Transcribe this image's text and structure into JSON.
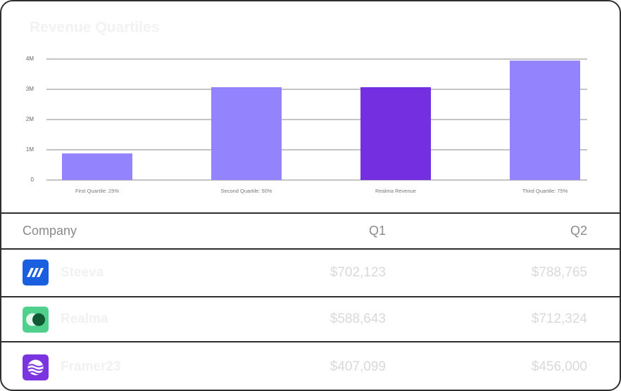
{
  "chart_data": {
    "type": "bar",
    "title": "Revenue Quartiles",
    "categories": [
      "First Quartile: 25%",
      "Second Quartile: 50%",
      "Realma Revenue",
      "Third Quartile: 75%"
    ],
    "values": [
      880000,
      3070000,
      3070000,
      3950000
    ],
    "colors": [
      "#9384fd",
      "#9384fd",
      "#7430e0",
      "#9384fd"
    ],
    "ylim": [
      0,
      4000000
    ],
    "yticks": [
      0,
      {
        "value": 1000000,
        "label": "1M"
      },
      {
        "value": 2000000,
        "label": "2M"
      },
      {
        "value": 3000000,
        "label": "3M"
      },
      {
        "value": 4000000,
        "label": "4M"
      }
    ],
    "grid": true
  },
  "table": {
    "header": [
      "Company",
      "Q1",
      "Q2"
    ],
    "rows": [
      [
        "Steeva",
        "$702,123",
        "$788,765"
      ],
      [
        "Realma",
        "$588,643",
        "$712,324"
      ],
      [
        "Framer23",
        "$407,099",
        "$456,000"
      ]
    ]
  }
}
